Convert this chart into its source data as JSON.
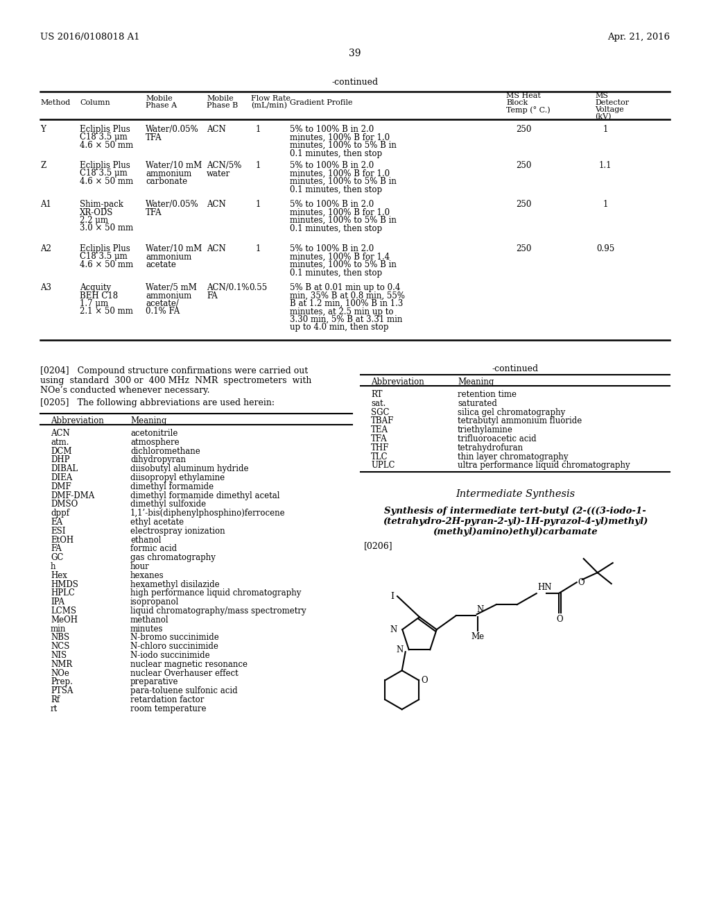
{
  "page_left": "US 2016/0108018 A1",
  "page_right": "Apr. 21, 2016",
  "page_number": "39",
  "continued_label_top": "-continued",
  "background_color": "#ffffff",
  "text_color": "#000000",
  "table_top_rows": [
    {
      "method": "Y",
      "column": [
        "Ecliplis Plus",
        "C18 3.5 μm",
        "4.6 × 50 mm"
      ],
      "mobile_a": [
        "Water/0.05%",
        "TFA"
      ],
      "mobile_b": [
        "ACN"
      ],
      "flow": "1",
      "gradient": [
        "5% to 100% B in 2.0",
        "minutes, 100% B for 1.0",
        "minutes, 100% to 5% B in",
        "0.1 minutes, then stop"
      ],
      "ms_heat": "250",
      "ms_voltage": "1"
    },
    {
      "method": "Z",
      "column": [
        "Ecliplis Plus",
        "C18 3.5 μm",
        "4.6 × 50 mm"
      ],
      "mobile_a": [
        "Water/10 mM",
        "ammonium",
        "carbonate"
      ],
      "mobile_b": [
        "ACN/5%",
        "water"
      ],
      "flow": "1",
      "gradient": [
        "5% to 100% B in 2.0",
        "minutes, 100% B for 1.0",
        "minutes, 100% to 5% B in",
        "0.1 minutes, then stop"
      ],
      "ms_heat": "250",
      "ms_voltage": "1.1"
    },
    {
      "method": "A1",
      "column": [
        "Shim-pack",
        "XR-ODS",
        "2.2 μm",
        "3.0 × 50 mm"
      ],
      "mobile_a": [
        "Water/0.05%",
        "TFA"
      ],
      "mobile_b": [
        "ACN"
      ],
      "flow": "1",
      "gradient": [
        "5% to 100% B in 2.0",
        "minutes, 100% B for 1.0",
        "minutes, 100% to 5% B in",
        "0.1 minutes, then stop"
      ],
      "ms_heat": "250",
      "ms_voltage": "1"
    },
    {
      "method": "A2",
      "column": [
        "Ecliplis Plus",
        "C18 3.5 μm",
        "4.6 × 50 mm"
      ],
      "mobile_a": [
        "Water/10 mM",
        "ammonium",
        "acetate"
      ],
      "mobile_b": [
        "ACN"
      ],
      "flow": "1",
      "gradient": [
        "5% to 100% B in 2.0",
        "minutes, 100% B for 1.4",
        "minutes, 100% to 5% B in",
        "0.1 minutes, then stop"
      ],
      "ms_heat": "250",
      "ms_voltage": "0.95"
    },
    {
      "method": "A3",
      "column": [
        "Acquity",
        "BEH C18",
        "1.7 μm",
        "2.1 × 50 mm"
      ],
      "mobile_a": [
        "Water/5 mM",
        "ammonium",
        "acetate/",
        "0.1% FA"
      ],
      "mobile_b": [
        "ACN/0.1%",
        "FA"
      ],
      "flow": "0.55",
      "gradient": [
        "5% B at 0.01 min up to 0.4",
        "min, 35% B at 0.8 min, 55%",
        "B at 1.2 min, 100% B in 1.3",
        "minutes, at 2.5 min up to",
        "3.30 min, 5% B at 3.31 min",
        "up to 4.0 min, then stop"
      ],
      "ms_heat": "",
      "ms_voltage": ""
    }
  ],
  "abbrev_table_left": [
    [
      "ACN",
      "acetonitrile"
    ],
    [
      "atm.",
      "atmosphere"
    ],
    [
      "DCM",
      "dichloromethane"
    ],
    [
      "DHP",
      "dihydropyran"
    ],
    [
      "DIBAL",
      "diisobutyl aluminum hydride"
    ],
    [
      "DIEA",
      "diisopropyl ethylamine"
    ],
    [
      "DMF",
      "dimethyl formamide"
    ],
    [
      "DMF-DMA",
      "dimethyl formamide dimethyl acetal"
    ],
    [
      "DMSO",
      "dimethyl sulfoxide"
    ],
    [
      "dppf",
      "1,1’-bis(diphenylphosphino)ferrocene"
    ],
    [
      "EA",
      "ethyl acetate"
    ],
    [
      "ESI",
      "electrospray ionization"
    ],
    [
      "EtOH",
      "ethanol"
    ],
    [
      "FA",
      "formic acid"
    ],
    [
      "GC",
      "gas chromatography"
    ],
    [
      "h",
      "hour"
    ],
    [
      "Hex",
      "hexanes"
    ],
    [
      "HMDS",
      "hexamethyl disilazide"
    ],
    [
      "HPLC",
      "high performance liquid chromatography"
    ],
    [
      "IPA",
      "isopropanol"
    ],
    [
      "LCMS",
      "liquid chromatography/mass spectrometry"
    ],
    [
      "MeOH",
      "methanol"
    ],
    [
      "min",
      "minutes"
    ],
    [
      "NBS",
      "N-bromo succinimide"
    ],
    [
      "NCS",
      "N-chloro succinimide"
    ],
    [
      "NIS",
      "N-iodo succinimide"
    ],
    [
      "NMR",
      "nuclear magnetic resonance"
    ],
    [
      "NOe",
      "nuclear Overhauser effect"
    ],
    [
      "Prep.",
      "preparative"
    ],
    [
      "PTSA",
      "para-toluene sulfonic acid"
    ],
    [
      "Rf",
      "retardation factor"
    ],
    [
      "rt",
      "room temperature"
    ]
  ],
  "abbrev_table_right": [
    [
      "RT",
      "retention time"
    ],
    [
      "sat.",
      "saturated"
    ],
    [
      "SGC",
      "silica gel chromatography"
    ],
    [
      "TBAF",
      "tetrabutyl ammonium fluoride"
    ],
    [
      "TEA",
      "triethylamine"
    ],
    [
      "TFA",
      "trifluoroacetic acid"
    ],
    [
      "THF",
      "tetrahydrofuran"
    ],
    [
      "TLC",
      "thin layer chromatography"
    ],
    [
      "UPLC",
      "ultra performance liquid chromatography"
    ]
  ]
}
